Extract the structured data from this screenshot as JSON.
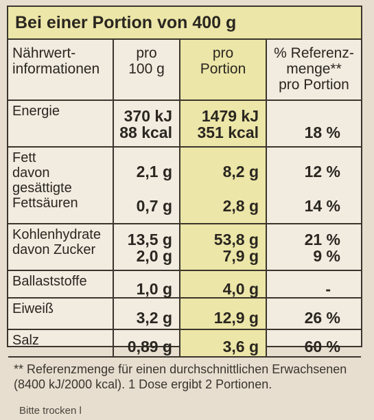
{
  "header": "Bei einer Portion von 400 g",
  "columns": {
    "name": "Nährwert-\ninformationen",
    "per100": "pro\n100 g",
    "perPortion": "pro\nPortion",
    "ref": "% Referenz-\nmenge**\npro Portion"
  },
  "rows": [
    {
      "name": "Energie",
      "per100": "370 kJ\n88 kcal",
      "perPortion": "1479 kJ\n351 kcal",
      "ref": "18 %"
    },
    {
      "name": "Fett\ndavon gesättigte\nFettsäuren",
      "per100": "2,1 g\n0,7 g",
      "perPortion": "8,2 g\n2,8 g",
      "ref": "12 %\n14 %"
    },
    {
      "name": "Kohlenhydrate\ndavon Zucker",
      "per100": "13,5 g\n2,0 g",
      "perPortion": "53,8 g\n7,9 g",
      "ref": "21 %\n9 %"
    },
    {
      "name": "Ballaststoffe",
      "per100": "1,0 g",
      "perPortion": "4,0 g",
      "ref": "-"
    },
    {
      "name": "Eiweiß",
      "per100": "3,2 g",
      "perPortion": "12,9 g",
      "ref": "26 %"
    },
    {
      "name": "Salz",
      "per100": "0,89 g",
      "perPortion": "3,6 g",
      "ref": "60 %"
    }
  ],
  "footnote": "** Referenzmenge für einen durchschnittlichen Erwachsenen (8400 kJ/2000 kcal). 1 Dose ergibt 2 Portionen.",
  "bottom": "Bitte trocken l"
}
